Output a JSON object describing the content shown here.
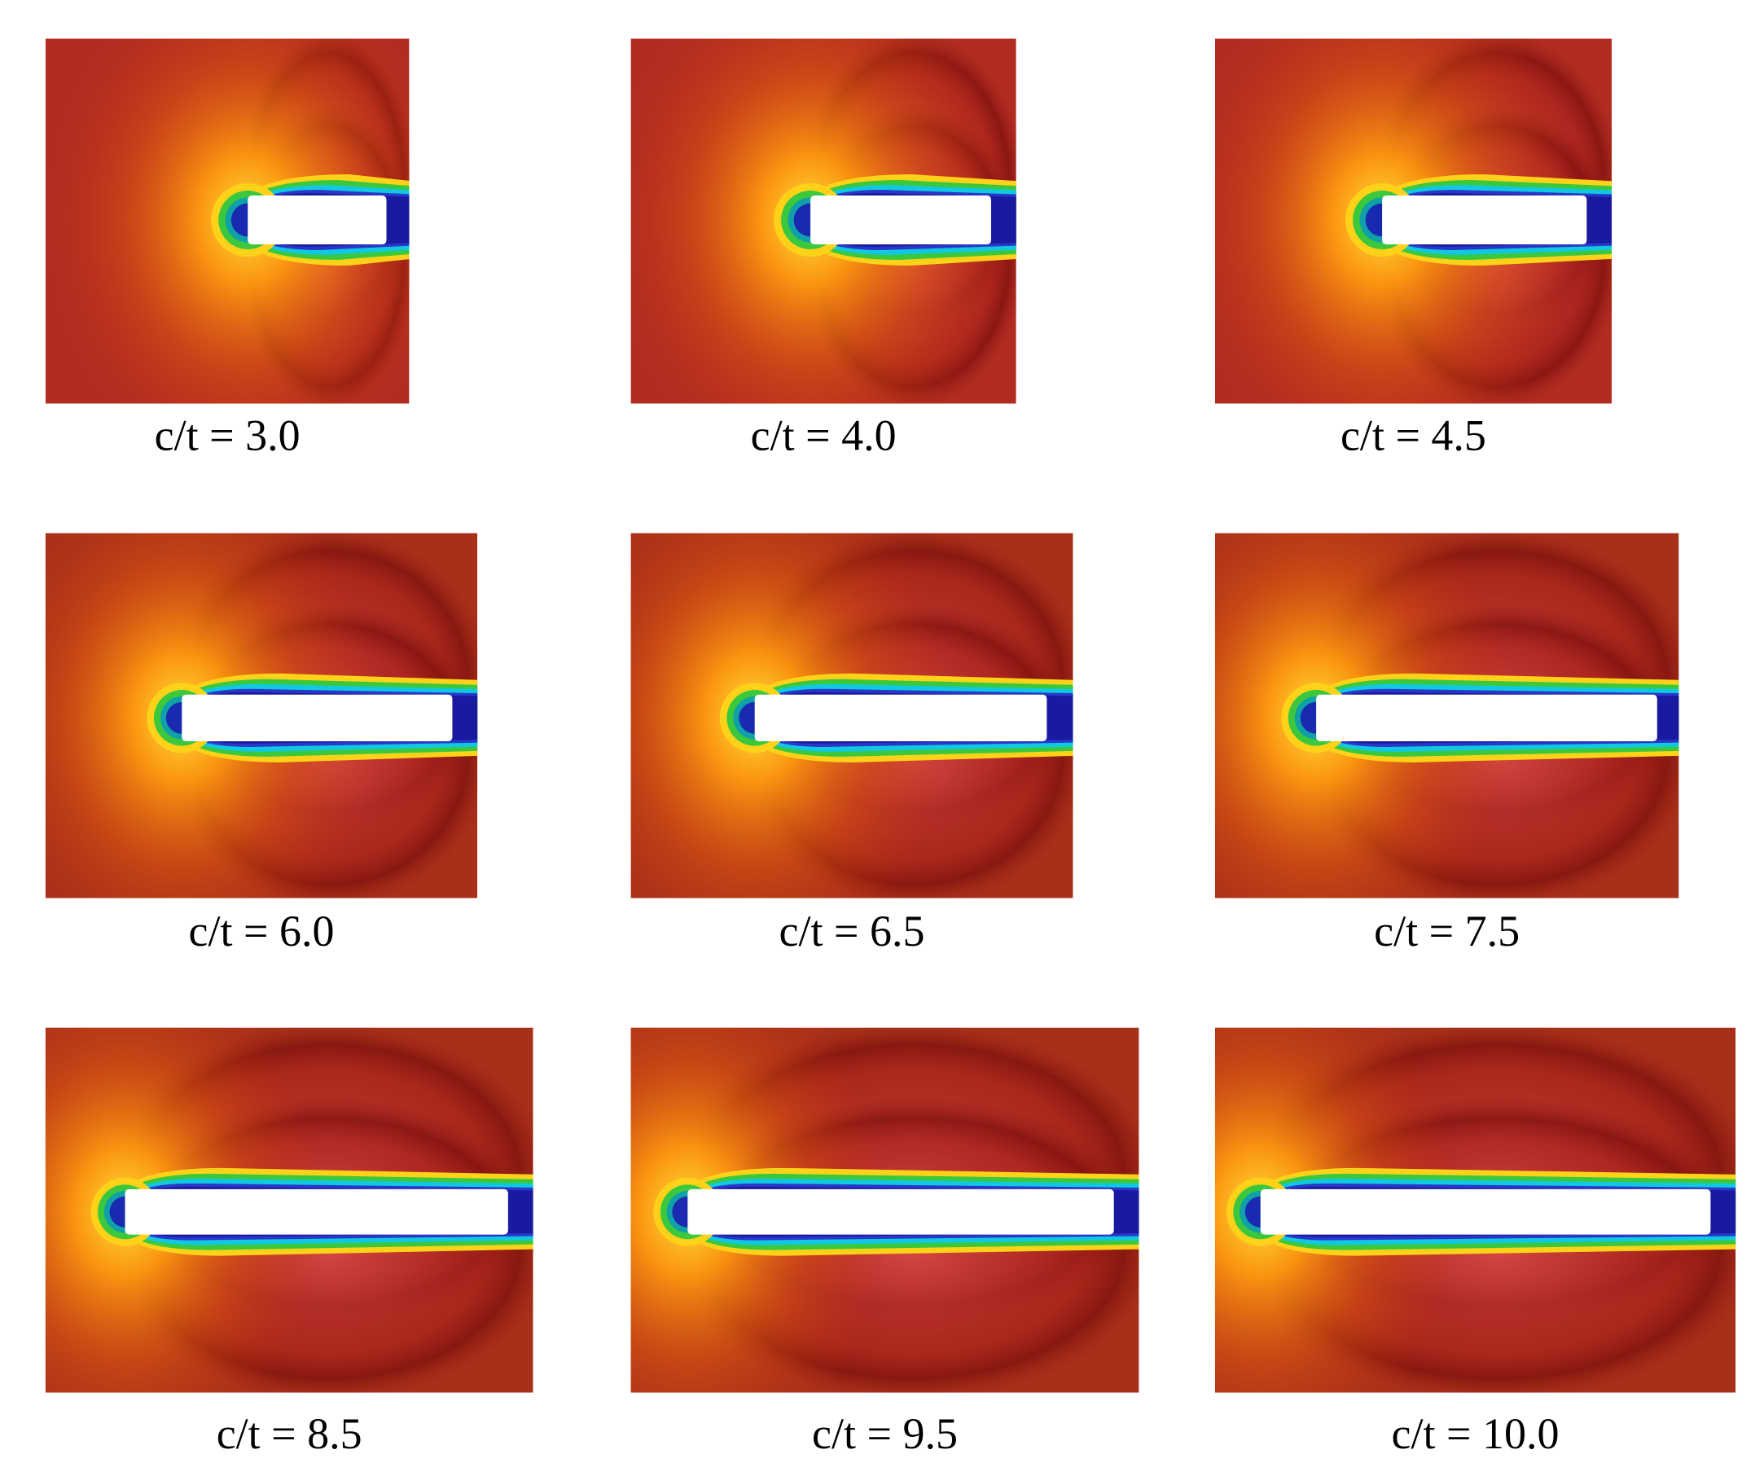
{
  "panels": [
    {
      "label": "c/t = 3.0"
    },
    {
      "label": "c/t = 4.0"
    },
    {
      "label": "c/t = 4.5"
    },
    {
      "label": "c/t = 6.0"
    },
    {
      "label": "c/t = 6.5"
    },
    {
      "label": "c/t = 7.5"
    },
    {
      "label": "c/t = 8.5"
    },
    {
      "label": "c/t = 9.5"
    },
    {
      "label": "c/t = 10.0"
    }
  ]
}
